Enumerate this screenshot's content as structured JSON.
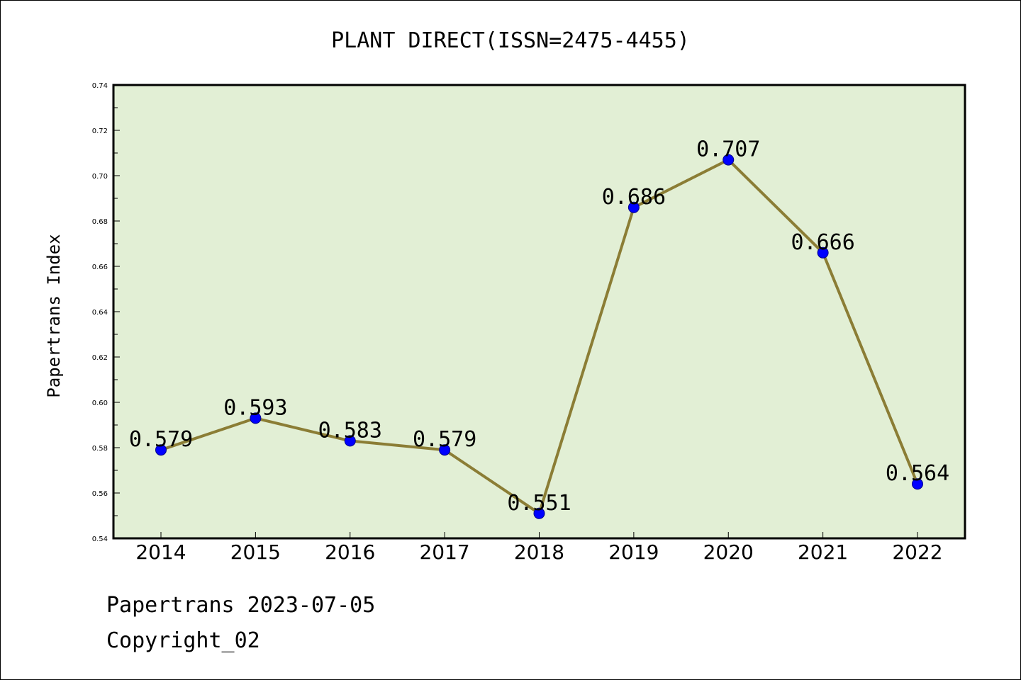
{
  "chart_data": {
    "type": "line",
    "title": "PLANT DIRECT(ISSN=2475-4455)",
    "ylabel": "Papertrans Index",
    "xlabel": "",
    "categories": [
      "2014",
      "2015",
      "2016",
      "2017",
      "2018",
      "2019",
      "2020",
      "2021",
      "2022"
    ],
    "series": [
      {
        "values": [
          0.579,
          0.593,
          0.583,
          0.579,
          0.551,
          0.686,
          0.707,
          0.666,
          0.564
        ],
        "labels": [
          "0.579",
          "0.593",
          "0.583",
          "0.579",
          "0.551",
          "0.686",
          "0.707",
          "0.666",
          "0.564"
        ]
      }
    ],
    "ylim": [
      0.54,
      0.74
    ],
    "yticks": [
      "0.54",
      "0.56",
      "0.58",
      "0.60",
      "0.62",
      "0.64",
      "0.66",
      "0.68",
      "0.70",
      "0.72",
      "0.74"
    ],
    "grid": false,
    "colors": {
      "plot_bg": "#e2efd5",
      "line": "#8b7d35",
      "marker": "#0000ff"
    }
  },
  "footer": {
    "line1": "Papertrans 2023-07-05",
    "line2": "Copyright_02"
  }
}
